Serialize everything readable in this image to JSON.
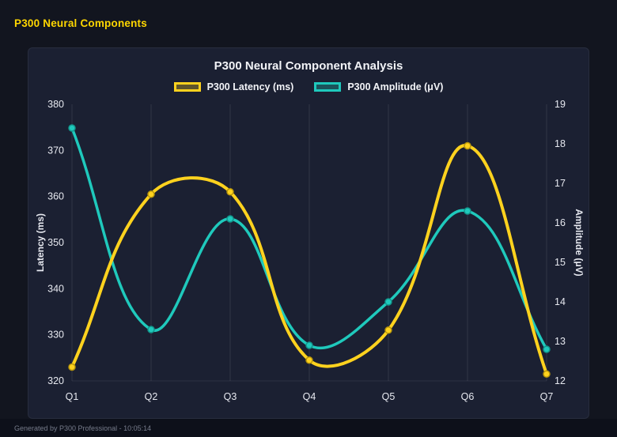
{
  "header": {
    "title": "P300 Neural Components"
  },
  "footer": {
    "text": "Generated by P300 Professional - 10:05:14"
  },
  "chart_data": {
    "type": "line",
    "title": "P300 Neural Component Analysis",
    "categories": [
      "Q1",
      "Q2",
      "Q3",
      "Q4",
      "Q5",
      "Q6",
      "Q7"
    ],
    "series": [
      {
        "name": "P300 Latency (ms)",
        "axis": "left",
        "color": "#ffd21e",
        "point_stroke": "#b8960b",
        "line_width": 4,
        "values": [
          323,
          360.5,
          361,
          324.5,
          331,
          371,
          321.5
        ]
      },
      {
        "name": "P300 Amplitude (μV)",
        "axis": "right",
        "color": "#1fc9bc",
        "point_stroke": "#12968c",
        "line_width": 3.5,
        "values": [
          18.4,
          13.3,
          16.1,
          12.9,
          14.0,
          16.3,
          12.8
        ]
      }
    ],
    "axes": {
      "left": {
        "label": "Latency (ms)",
        "min": 320,
        "max": 380,
        "step": 10
      },
      "right": {
        "label": "Amplitude (μV)",
        "min": 12,
        "max": 19,
        "step": 1
      }
    },
    "legend_position": "top",
    "grid": "vertical",
    "curve_tension": 0.4
  },
  "theme": {
    "page_bg": "#12151f",
    "card_bg": "#1b2032",
    "header_color": "#ffd700",
    "title_color": "#f2f3f7",
    "tick_color": "#e7e9f0",
    "grid_color": "rgba(255,255,255,0.10)",
    "footer_bg": "#0d101a",
    "footer_color": "#767b8a"
  }
}
